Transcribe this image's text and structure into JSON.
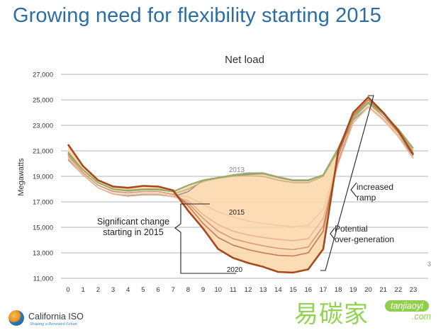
{
  "slide": {
    "title": "Growing need for flexibility starting 2015",
    "page_number": "3"
  },
  "footer": {
    "logo_name": "California ISO",
    "logo_tagline": "Shaping a Renewed Future",
    "logo_icon": "cal-iso-logo-icon"
  },
  "watermark": {
    "chinese": "易碳家",
    "domain": "tanjiaoyi",
    "tld": ".com"
  },
  "colors": {
    "title": "#2e6da1",
    "fill": "#fbd6a7",
    "series_2013": "#9aaa6a",
    "series_2020": "#a64a1c",
    "grid": "#999999"
  },
  "chart_data": {
    "type": "line",
    "title": "Net load",
    "ylabel": "Megawatts",
    "xlabel": "",
    "ylim": [
      11000,
      27000
    ],
    "yticks": [
      11000,
      13000,
      15000,
      17000,
      19000,
      21000,
      23000,
      25000,
      27000
    ],
    "ytick_labels": [
      "11,000",
      "13,000",
      "15,000",
      "17,000",
      "19,000",
      "21,000",
      "23,000",
      "25,000",
      "27,000"
    ],
    "x": [
      0,
      1,
      2,
      3,
      4,
      5,
      6,
      7,
      8,
      9,
      10,
      11,
      12,
      13,
      14,
      15,
      16,
      17,
      18,
      19,
      20,
      21,
      22,
      23
    ],
    "grid": "horizontal",
    "shaded_region": {
      "between": [
        "2013",
        "2020"
      ],
      "color": "#fbd6a7"
    },
    "series": [
      {
        "name": "2013",
        "color": "#9aaa6a",
        "width": 2.2,
        "values": [
          20800,
          19500,
          18500,
          18000,
          17850,
          17950,
          17950,
          17800,
          18300,
          18700,
          18900,
          19100,
          19250,
          19250,
          18950,
          18700,
          18700,
          19100,
          21200,
          23700,
          24800,
          23900,
          22700,
          21200
        ]
      },
      {
        "name": "",
        "color": "#c7b27a",
        "width": 1.6,
        "values": [
          20600,
          19300,
          18300,
          17850,
          17700,
          17800,
          17800,
          17600,
          18000,
          18600,
          18850,
          19000,
          19050,
          19000,
          18700,
          18500,
          18500,
          19000,
          21000,
          23600,
          24700,
          23700,
          22600,
          21000
        ]
      },
      {
        "name": "2015",
        "color": "#f2c9a0",
        "width": 1.6,
        "values": [
          20500,
          19200,
          18100,
          17650,
          17550,
          17650,
          17650,
          17500,
          17400,
          16800,
          16200,
          15800,
          15500,
          15300,
          15150,
          15050,
          15150,
          16400,
          20200,
          23200,
          24400,
          23400,
          22100,
          20400
        ]
      },
      {
        "name": "",
        "color": "#e8b592",
        "width": 1.6,
        "values": [
          20400,
          19100,
          18100,
          17600,
          17500,
          17600,
          17600,
          17400,
          17100,
          16000,
          15200,
          14700,
          14400,
          14200,
          14050,
          13950,
          14100,
          15700,
          20000,
          23200,
          24500,
          23500,
          22200,
          20400
        ]
      },
      {
        "name": "",
        "color": "#d59a77",
        "width": 1.6,
        "values": [
          20700,
          19300,
          18300,
          17800,
          17700,
          17800,
          17800,
          17600,
          16900,
          15700,
          14700,
          14100,
          13800,
          13550,
          13350,
          13250,
          13450,
          15100,
          20200,
          23500,
          24800,
          23700,
          22400,
          20700
        ]
      },
      {
        "name": "",
        "color": "#c27a57",
        "width": 1.6,
        "values": [
          20900,
          19500,
          18500,
          18000,
          17900,
          18000,
          18000,
          17800,
          16700,
          15300,
          14200,
          13600,
          13250,
          13000,
          12800,
          12750,
          13000,
          14700,
          20600,
          23800,
          25000,
          23900,
          22500,
          20800
        ]
      },
      {
        "name": "2020",
        "color": "#a64a1c",
        "width": 2.6,
        "values": [
          21500,
          19800,
          18700,
          18200,
          18100,
          18250,
          18200,
          17900,
          16300,
          14900,
          13300,
          12600,
          12200,
          11900,
          11500,
          11450,
          11700,
          13300,
          21000,
          24000,
          25200,
          24000,
          22600,
          20700
        ]
      },
      {
        "name": "",
        "color": "#8f8f8f",
        "width": 1.4,
        "values": [
          20300,
          19100,
          18100,
          17600,
          17450,
          17550,
          17550,
          17400,
          17800,
          18700,
          18900,
          19050,
          19150,
          19200,
          18900,
          18650,
          18650,
          19100,
          21000,
          23400,
          24500,
          23500,
          22200,
          20600
        ]
      }
    ],
    "series_labels": [
      {
        "series": "2013",
        "text": "2013"
      },
      {
        "series": "2015",
        "text": "2015"
      },
      {
        "series": "2020",
        "text": "2020"
      }
    ],
    "annotations": [
      {
        "id": "significant",
        "lines": [
          "Significant change",
          "starting in 2015"
        ]
      },
      {
        "id": "ramp",
        "lines": [
          "increased",
          "ramp"
        ]
      },
      {
        "id": "overgen",
        "lines": [
          "Potential",
          "over-generation"
        ]
      }
    ]
  }
}
